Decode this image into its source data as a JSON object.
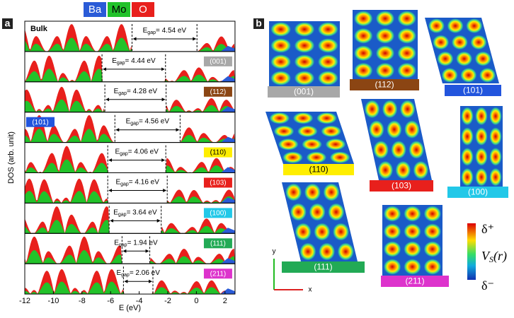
{
  "panel_a": {
    "label": "a",
    "legend": [
      {
        "name": "Ba",
        "color": "#2a5bd7"
      },
      {
        "name": "Mo",
        "color": "#22c22a"
      },
      {
        "name": "O",
        "color": "#e8201c"
      }
    ],
    "y_label": "DOS (arb. unit)",
    "x_label": "E (eV)",
    "xlim": [
      -12,
      2.7
    ],
    "xticks": [
      -12,
      -10,
      -8,
      -6,
      -4,
      -2,
      0,
      2
    ],
    "gap_symbol": "E",
    "gap_subscript": "gap",
    "rows": [
      {
        "name": "Bulk",
        "gap_label": "= 4.54 eV",
        "gap": 4.54,
        "vbm": -4.5
      },
      {
        "name": "(001)",
        "color": "#a8a8a8",
        "gap_label": "= 4.44 eV",
        "gap": 4.44,
        "vbm": -6.6
      },
      {
        "name": "(112)",
        "color": "#8b4513",
        "gap_label": "= 4.28 eV",
        "gap": 4.28,
        "vbm": -6.4
      },
      {
        "name": "(101)",
        "color": "#2255dd",
        "gap_label": "= 4.56 eV",
        "gap": 4.56,
        "vbm": -5.7
      },
      {
        "name": "(110)",
        "color": "#ffee00",
        "gap_label": "= 4.06 eV",
        "gap": 4.06,
        "vbm": -6.2
      },
      {
        "name": "(103)",
        "color": "#e8201c",
        "gap_label": "= 4.16 eV",
        "gap": 4.16,
        "vbm": -6.2
      },
      {
        "name": "(100)",
        "color": "#22c8e8",
        "gap_label": "= 3.64 eV",
        "gap": 3.64,
        "vbm": -6.1
      },
      {
        "name": "(111)",
        "color": "#22aa55",
        "gap_label": "= 1.94 eV",
        "gap": 1.94,
        "vbm": -5.2
      },
      {
        "name": "(211)",
        "color": "#dd33cc",
        "gap_label": "= 2.06 eV",
        "gap": 2.06,
        "vbm": -5.1
      }
    ]
  },
  "panel_b": {
    "label": "b",
    "maps": [
      {
        "name": "(001)",
        "color": "#a8a8a8"
      },
      {
        "name": "(112)",
        "color": "#8b4513"
      },
      {
        "name": "(101)",
        "color": "#2255dd"
      },
      {
        "name": "(110)",
        "color": "#ffee00"
      },
      {
        "name": "(103)",
        "color": "#e8201c"
      },
      {
        "name": "(100)",
        "color": "#22c8e8"
      },
      {
        "name": "(111)",
        "color": "#22aa55"
      },
      {
        "name": "(211)",
        "color": "#dd33cc"
      }
    ],
    "axis_y": "y",
    "axis_x": "x",
    "colorbar": {
      "top": "δ⁺",
      "middle": "V",
      "middle_sub": "S",
      "middle_rest": "(r)",
      "bottom": "δ⁻"
    }
  }
}
